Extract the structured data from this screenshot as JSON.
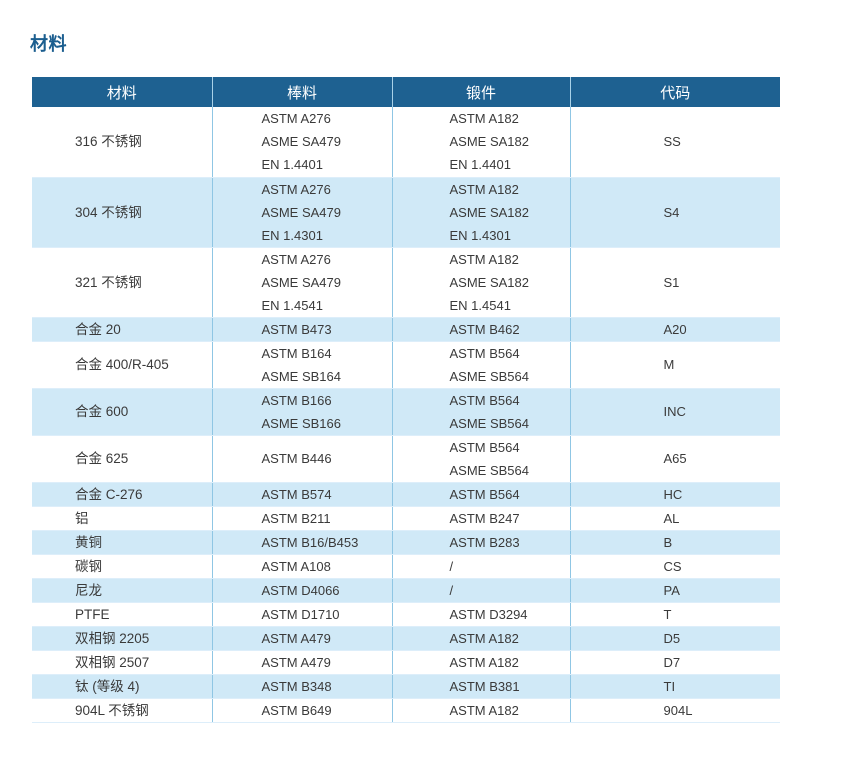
{
  "page_title": "材料",
  "colors": {
    "title_color": "#1b5e8f",
    "header_bg": "#1e6191",
    "header_text": "#ffffff",
    "row_alt": "#d0e9f7",
    "border_v": "#8fc6e4",
    "border_h": "#ddeefa",
    "text_color": "#3a3a3a"
  },
  "table": {
    "headers": [
      "材料",
      "棒料",
      "锻件",
      "代码"
    ],
    "rows": [
      {
        "material": "316 不锈钢",
        "bar": [
          "ASTM A276",
          "ASME SA479",
          "EN 1.4401"
        ],
        "forging": [
          "ASTM A182",
          "ASME SA182",
          "EN 1.4401"
        ],
        "code": "SS"
      },
      {
        "material": "304 不锈钢",
        "bar": [
          "ASTM A276",
          "ASME SA479",
          "EN 1.4301"
        ],
        "forging": [
          "ASTM A182",
          "ASME SA182",
          "EN 1.4301"
        ],
        "code": "S4"
      },
      {
        "material": "321 不锈钢",
        "bar": [
          "ASTM A276",
          "ASME SA479",
          "EN 1.4541"
        ],
        "forging": [
          "ASTM A182",
          "ASME SA182",
          "EN 1.4541"
        ],
        "code": "S1"
      },
      {
        "material": "合金 20",
        "bar": [
          "ASTM B473"
        ],
        "forging": [
          "ASTM B462"
        ],
        "code": "A20"
      },
      {
        "material": "合金 400/R-405",
        "bar": [
          "ASTM B164",
          "ASME SB164"
        ],
        "forging": [
          "ASTM B564",
          "ASME SB564"
        ],
        "code": "M"
      },
      {
        "material": "合金 600",
        "bar": [
          "ASTM B166",
          "ASME SB166"
        ],
        "forging": [
          "ASTM B564",
          "ASME SB564"
        ],
        "code": "INC"
      },
      {
        "material": "合金 625",
        "bar": [
          "ASTM B446"
        ],
        "forging": [
          "ASTM B564",
          "ASME SB564"
        ],
        "code": "A65"
      },
      {
        "material": "合金 C-276",
        "bar": [
          "ASTM B574"
        ],
        "forging": [
          "ASTM B564"
        ],
        "code": "HC"
      },
      {
        "material": "铝",
        "bar": [
          "ASTM B211"
        ],
        "forging": [
          "ASTM B247"
        ],
        "code": "AL"
      },
      {
        "material": "黄铜",
        "bar": [
          "ASTM B16/B453"
        ],
        "forging": [
          "ASTM B283"
        ],
        "code": "B"
      },
      {
        "material": "碳钢",
        "bar": [
          "ASTM A108"
        ],
        "forging": [
          "/"
        ],
        "code": "CS"
      },
      {
        "material": "尼龙",
        "bar": [
          "ASTM D4066"
        ],
        "forging": [
          "/"
        ],
        "code": "PA"
      },
      {
        "material": "PTFE",
        "bar": [
          "ASTM D1710"
        ],
        "forging": [
          "ASTM D3294"
        ],
        "code": "T"
      },
      {
        "material": "双相钢 2205",
        "bar": [
          "ASTM A479"
        ],
        "forging": [
          "ASTM A182"
        ],
        "code": "D5"
      },
      {
        "material": "双相钢 2507",
        "bar": [
          "ASTM A479"
        ],
        "forging": [
          "ASTM A182"
        ],
        "code": "D7"
      },
      {
        "material": "钛 (等级 4)",
        "bar": [
          "ASTM B348"
        ],
        "forging": [
          "ASTM B381"
        ],
        "code": "TI"
      },
      {
        "material": "904L 不锈钢",
        "bar": [
          "ASTM B649"
        ],
        "forging": [
          "ASTM A182"
        ],
        "code": "904L"
      }
    ]
  }
}
